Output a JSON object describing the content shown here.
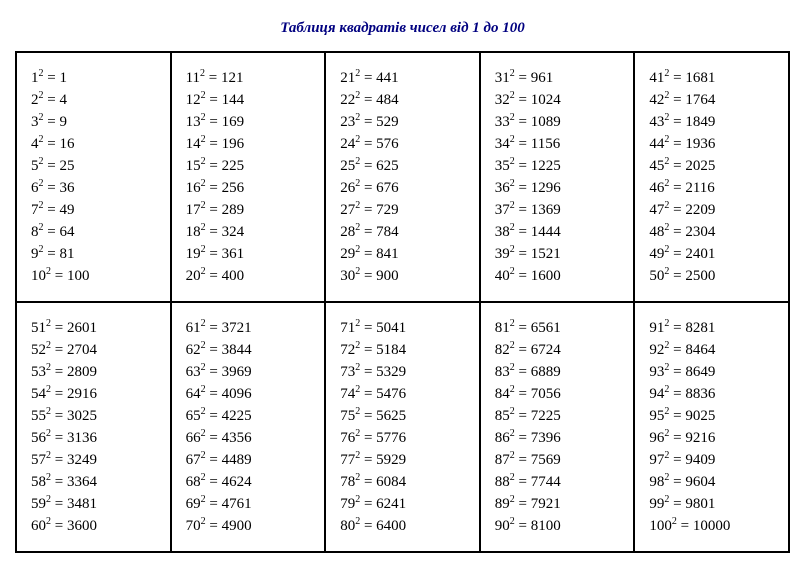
{
  "title": "Таблиця квадратів чисел від 1 до 100",
  "title_color": "#000080",
  "title_fontsize": 15,
  "title_fontstyle": "italic",
  "title_fontweight": "bold",
  "background_color": "#ffffff",
  "border_color": "#000000",
  "text_color": "#000000",
  "entry_fontsize": 15,
  "entry_line_height": 22,
  "columns_per_row": 5,
  "rows": 2,
  "values_per_cell": 10,
  "squares": [
    {
      "n": 1,
      "sq": 1
    },
    {
      "n": 2,
      "sq": 4
    },
    {
      "n": 3,
      "sq": 9
    },
    {
      "n": 4,
      "sq": 16
    },
    {
      "n": 5,
      "sq": 25
    },
    {
      "n": 6,
      "sq": 36
    },
    {
      "n": 7,
      "sq": 49
    },
    {
      "n": 8,
      "sq": 64
    },
    {
      "n": 9,
      "sq": 81
    },
    {
      "n": 10,
      "sq": 100
    },
    {
      "n": 11,
      "sq": 121
    },
    {
      "n": 12,
      "sq": 144
    },
    {
      "n": 13,
      "sq": 169
    },
    {
      "n": 14,
      "sq": 196
    },
    {
      "n": 15,
      "sq": 225
    },
    {
      "n": 16,
      "sq": 256
    },
    {
      "n": 17,
      "sq": 289
    },
    {
      "n": 18,
      "sq": 324
    },
    {
      "n": 19,
      "sq": 361
    },
    {
      "n": 20,
      "sq": 400
    },
    {
      "n": 21,
      "sq": 441
    },
    {
      "n": 22,
      "sq": 484
    },
    {
      "n": 23,
      "sq": 529
    },
    {
      "n": 24,
      "sq": 576
    },
    {
      "n": 25,
      "sq": 625
    },
    {
      "n": 26,
      "sq": 676
    },
    {
      "n": 27,
      "sq": 729
    },
    {
      "n": 28,
      "sq": 784
    },
    {
      "n": 29,
      "sq": 841
    },
    {
      "n": 30,
      "sq": 900
    },
    {
      "n": 31,
      "sq": 961
    },
    {
      "n": 32,
      "sq": 1024
    },
    {
      "n": 33,
      "sq": 1089
    },
    {
      "n": 34,
      "sq": 1156
    },
    {
      "n": 35,
      "sq": 1225
    },
    {
      "n": 36,
      "sq": 1296
    },
    {
      "n": 37,
      "sq": 1369
    },
    {
      "n": 38,
      "sq": 1444
    },
    {
      "n": 39,
      "sq": 1521
    },
    {
      "n": 40,
      "sq": 1600
    },
    {
      "n": 41,
      "sq": 1681
    },
    {
      "n": 42,
      "sq": 1764
    },
    {
      "n": 43,
      "sq": 1849
    },
    {
      "n": 44,
      "sq": 1936
    },
    {
      "n": 45,
      "sq": 2025
    },
    {
      "n": 46,
      "sq": 2116
    },
    {
      "n": 47,
      "sq": 2209
    },
    {
      "n": 48,
      "sq": 2304
    },
    {
      "n": 49,
      "sq": 2401
    },
    {
      "n": 50,
      "sq": 2500
    },
    {
      "n": 51,
      "sq": 2601
    },
    {
      "n": 52,
      "sq": 2704
    },
    {
      "n": 53,
      "sq": 2809
    },
    {
      "n": 54,
      "sq": 2916
    },
    {
      "n": 55,
      "sq": 3025
    },
    {
      "n": 56,
      "sq": 3136
    },
    {
      "n": 57,
      "sq": 3249
    },
    {
      "n": 58,
      "sq": 3364
    },
    {
      "n": 59,
      "sq": 3481
    },
    {
      "n": 60,
      "sq": 3600
    },
    {
      "n": 61,
      "sq": 3721
    },
    {
      "n": 62,
      "sq": 3844
    },
    {
      "n": 63,
      "sq": 3969
    },
    {
      "n": 64,
      "sq": 4096
    },
    {
      "n": 65,
      "sq": 4225
    },
    {
      "n": 66,
      "sq": 4356
    },
    {
      "n": 67,
      "sq": 4489
    },
    {
      "n": 68,
      "sq": 4624
    },
    {
      "n": 69,
      "sq": 4761
    },
    {
      "n": 70,
      "sq": 4900
    },
    {
      "n": 71,
      "sq": 5041
    },
    {
      "n": 72,
      "sq": 5184
    },
    {
      "n": 73,
      "sq": 5329
    },
    {
      "n": 74,
      "sq": 5476
    },
    {
      "n": 75,
      "sq": 5625
    },
    {
      "n": 76,
      "sq": 5776
    },
    {
      "n": 77,
      "sq": 5929
    },
    {
      "n": 78,
      "sq": 6084
    },
    {
      "n": 79,
      "sq": 6241
    },
    {
      "n": 80,
      "sq": 6400
    },
    {
      "n": 81,
      "sq": 6561
    },
    {
      "n": 82,
      "sq": 6724
    },
    {
      "n": 83,
      "sq": 6889
    },
    {
      "n": 84,
      "sq": 7056
    },
    {
      "n": 85,
      "sq": 7225
    },
    {
      "n": 86,
      "sq": 7396
    },
    {
      "n": 87,
      "sq": 7569
    },
    {
      "n": 88,
      "sq": 7744
    },
    {
      "n": 89,
      "sq": 7921
    },
    {
      "n": 90,
      "sq": 8100
    },
    {
      "n": 91,
      "sq": 8281
    },
    {
      "n": 92,
      "sq": 8464
    },
    {
      "n": 93,
      "sq": 8649
    },
    {
      "n": 94,
      "sq": 8836
    },
    {
      "n": 95,
      "sq": 9025
    },
    {
      "n": 96,
      "sq": 9216
    },
    {
      "n": 97,
      "sq": 9409
    },
    {
      "n": 98,
      "sq": 9604
    },
    {
      "n": 99,
      "sq": 9801
    },
    {
      "n": 100,
      "sq": 10000
    }
  ]
}
